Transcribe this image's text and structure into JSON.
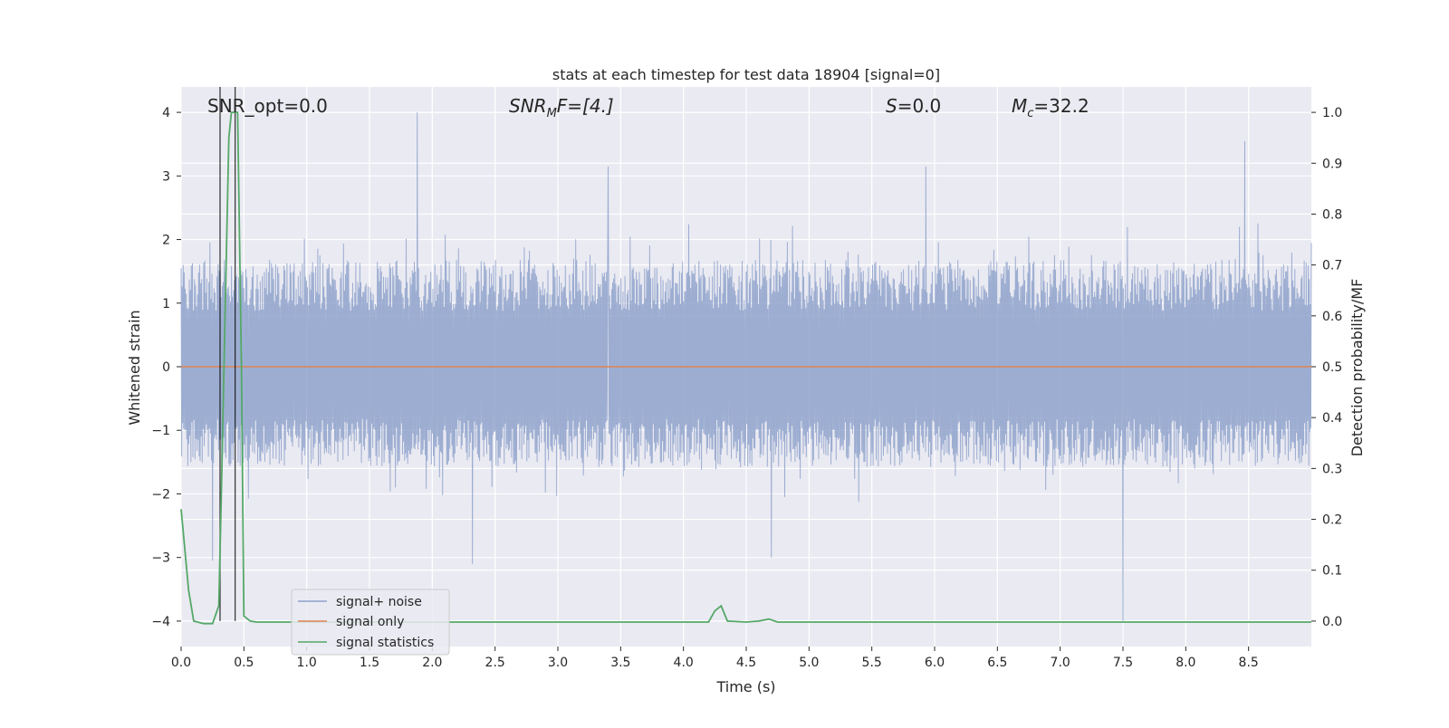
{
  "chart_data": {
    "type": "line",
    "title": "stats at each timestep for test data 18904 [signal=0]",
    "xlabel": "Time (s)",
    "ylabel": "Whitened strain",
    "ylabel_right": "Detection probability/MF",
    "xlim": [
      0.0,
      9.0
    ],
    "ylim": [
      -4.4,
      4.4
    ],
    "ylim_right": [
      -0.05,
      1.05
    ],
    "x_ticks": [
      "0.0",
      "0.5",
      "1.0",
      "1.5",
      "2.0",
      "2.5",
      "3.0",
      "3.5",
      "4.0",
      "4.5",
      "5.0",
      "5.5",
      "6.0",
      "6.5",
      "7.0",
      "7.5",
      "8.0",
      "8.5"
    ],
    "y_ticks": [
      "4",
      "3",
      "2",
      "1",
      "0",
      "−1",
      "−2",
      "−3",
      "−4"
    ],
    "y_ticks_right": [
      "1.0",
      "0.9",
      "0.8",
      "0.7",
      "0.6",
      "0.5",
      "0.4",
      "0.3",
      "0.2",
      "0.1",
      "0.0"
    ],
    "grid": true,
    "legend_position": "lower-left",
    "annotations": {
      "snr_opt": "SNR_opt=0.0",
      "snr_mf_main": "SNR",
      "snr_mf_sub": "M",
      "snr_mf_rest": "F=[4.]",
      "s_main": "S",
      "s_rest": "=0.0",
      "mc_main": "M",
      "mc_sub": "c",
      "mc_rest": "=32.2"
    },
    "series": [
      {
        "name": "signal+ noise",
        "color": "#8ea2cb",
        "axis": "left",
        "envelope_typical": [
          -1.5,
          1.6
        ],
        "notable_spikes": [
          {
            "x": 1.88,
            "y": 4.0
          },
          {
            "x": 3.4,
            "y": 3.15
          },
          {
            "x": 5.93,
            "y": 3.15
          },
          {
            "x": 8.47,
            "y": 3.55
          },
          {
            "x": 2.32,
            "y": -3.1
          },
          {
            "x": 4.7,
            "y": -3.0
          },
          {
            "x": 7.5,
            "y": -4.0
          },
          {
            "x": 0.25,
            "y": -3.05
          }
        ]
      },
      {
        "name": "signal only",
        "color": "#dd8452",
        "axis": "left",
        "x": [
          0.0,
          9.0
        ],
        "y": [
          0.0,
          0.0
        ]
      },
      {
        "name": "signal statistics",
        "color": "#55a868",
        "axis": "right",
        "x": [
          0.0,
          0.06,
          0.1,
          0.18,
          0.25,
          0.3,
          0.32,
          0.35,
          0.38,
          0.4,
          0.42,
          0.45,
          0.48,
          0.5,
          0.55,
          0.6,
          1.0,
          4.0,
          4.2,
          4.25,
          4.3,
          4.35,
          4.5,
          4.6,
          4.68,
          4.75,
          5.0,
          9.0
        ],
        "y": [
          0.22,
          0.06,
          0.0,
          -0.005,
          -0.005,
          0.03,
          0.25,
          0.6,
          0.95,
          1.0,
          1.0,
          1.0,
          0.5,
          0.01,
          0.0,
          -0.002,
          -0.002,
          -0.002,
          -0.002,
          0.02,
          0.03,
          0.0,
          -0.002,
          0.0,
          0.004,
          -0.002,
          -0.002,
          -0.002
        ]
      }
    ],
    "vertical_lines": [
      {
        "x": 0.31,
        "color": "#000000"
      },
      {
        "x": 0.43,
        "color": "#000000"
      }
    ]
  }
}
